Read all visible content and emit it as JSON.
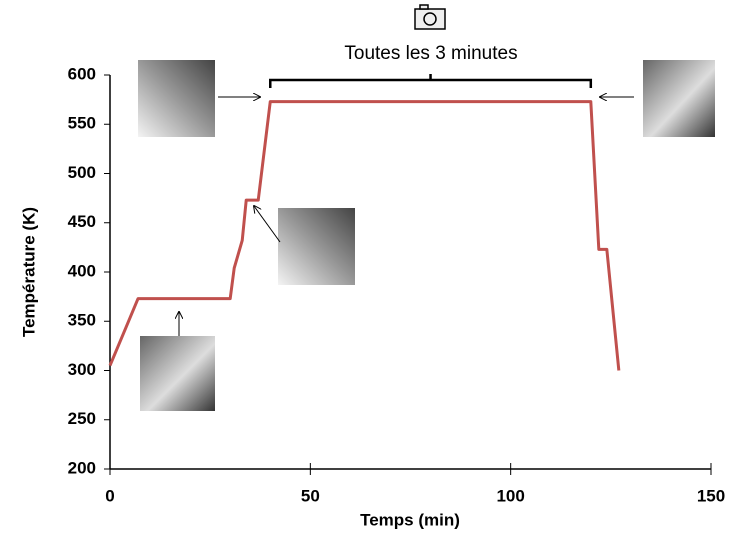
{
  "chart_data": {
    "type": "line",
    "x_label": "Temps (min)",
    "y_label": "Température (K)",
    "annotation": "Toutes les 3 minutes",
    "x": [
      0,
      7,
      30,
      31,
      33,
      34,
      37,
      40,
      120,
      122,
      124,
      127
    ],
    "series": [
      {
        "name": "Température",
        "color": "#c0504d",
        "values": [
          305,
          373,
          373,
          404,
          432,
          473,
          473,
          573,
          573,
          423,
          423,
          300
        ]
      }
    ],
    "xlim": [
      0,
      150
    ],
    "xticks": [
      0,
      50,
      100,
      150
    ],
    "ylim": [
      200,
      600
    ],
    "yticks": [
      200,
      250,
      300,
      350,
      400,
      450,
      500,
      550,
      600
    ],
    "annotation_span": [
      40,
      120
    ]
  }
}
